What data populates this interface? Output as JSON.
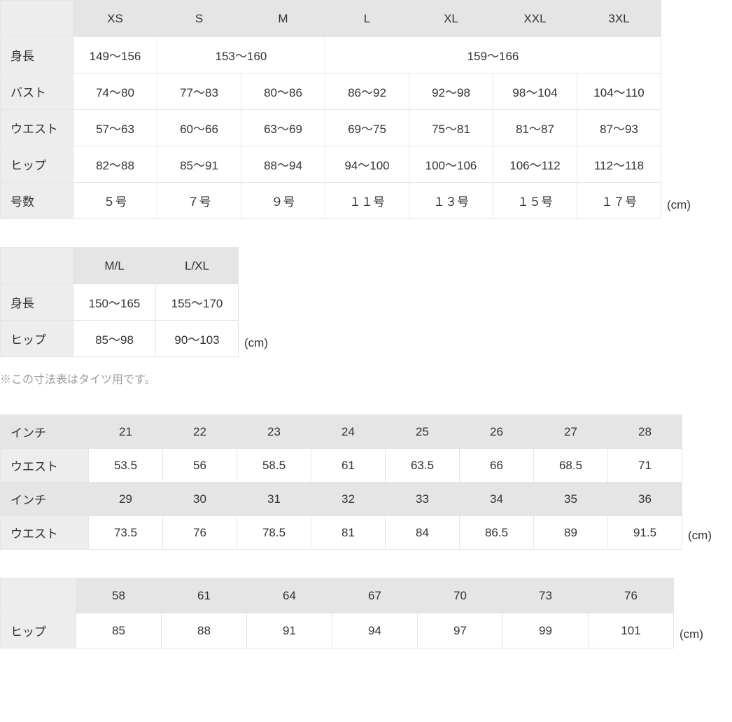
{
  "unit": "(cm)",
  "table1": {
    "sizes": [
      "XS",
      "S",
      "M",
      "L",
      "XL",
      "XXL",
      "3XL"
    ],
    "rows": {
      "height": {
        "label": "身長",
        "cells": [
          {
            "t": "149〜156",
            "span": 1
          },
          {
            "t": "153〜160",
            "span": 2
          },
          {
            "t": "159〜166",
            "span": 4
          }
        ]
      },
      "bust": {
        "label": "バスト",
        "cells": [
          {
            "t": "74〜80"
          },
          {
            "t": "77〜83"
          },
          {
            "t": "80〜86"
          },
          {
            "t": "86〜92"
          },
          {
            "t": "92〜98"
          },
          {
            "t": "98〜104"
          },
          {
            "t": "104〜110"
          }
        ]
      },
      "waist": {
        "label": "ウエスト",
        "cells": [
          {
            "t": "57〜63"
          },
          {
            "t": "60〜66"
          },
          {
            "t": "63〜69"
          },
          {
            "t": "69〜75"
          },
          {
            "t": "75〜81"
          },
          {
            "t": "81〜87"
          },
          {
            "t": "87〜93"
          }
        ]
      },
      "hip": {
        "label": "ヒップ",
        "cells": [
          {
            "t": "82〜88"
          },
          {
            "t": "85〜91"
          },
          {
            "t": "88〜94"
          },
          {
            "t": "94〜100"
          },
          {
            "t": "100〜106"
          },
          {
            "t": "106〜112"
          },
          {
            "t": "112〜118"
          }
        ]
      },
      "gous": {
        "label": "号数",
        "cells": [
          {
            "t": "５号"
          },
          {
            "t": "７号"
          },
          {
            "t": "９号"
          },
          {
            "t": "１１号"
          },
          {
            "t": "１３号"
          },
          {
            "t": "１５号"
          },
          {
            "t": "１７号"
          }
        ]
      }
    }
  },
  "table2": {
    "sizes": [
      "M/L",
      "L/XL"
    ],
    "rows": {
      "height": {
        "label": "身長",
        "cells": [
          "150〜165",
          "155〜170"
        ]
      },
      "hip": {
        "label": "ヒップ",
        "cells": [
          "85〜98",
          "90〜103"
        ]
      }
    },
    "note": "※この寸法表はタイツ用です。"
  },
  "table3": {
    "inch_label": "インチ",
    "waist_label": "ウエスト",
    "row1_inch": [
      "21",
      "22",
      "23",
      "24",
      "25",
      "26",
      "27",
      "28"
    ],
    "row1_waist": [
      "53.5",
      "56",
      "58.5",
      "61",
      "63.5",
      "66",
      "68.5",
      "71"
    ],
    "row2_inch": [
      "29",
      "30",
      "31",
      "32",
      "33",
      "34",
      "35",
      "36"
    ],
    "row2_waist": [
      "73.5",
      "76",
      "78.5",
      "81",
      "84",
      "86.5",
      "89",
      "91.5"
    ]
  },
  "table4": {
    "sizes": [
      "58",
      "61",
      "64",
      "67",
      "70",
      "73",
      "76"
    ],
    "rows": {
      "hip": {
        "label": "ヒップ",
        "cells": [
          "85",
          "88",
          "91",
          "94",
          "97",
          "99",
          "101"
        ]
      }
    }
  }
}
